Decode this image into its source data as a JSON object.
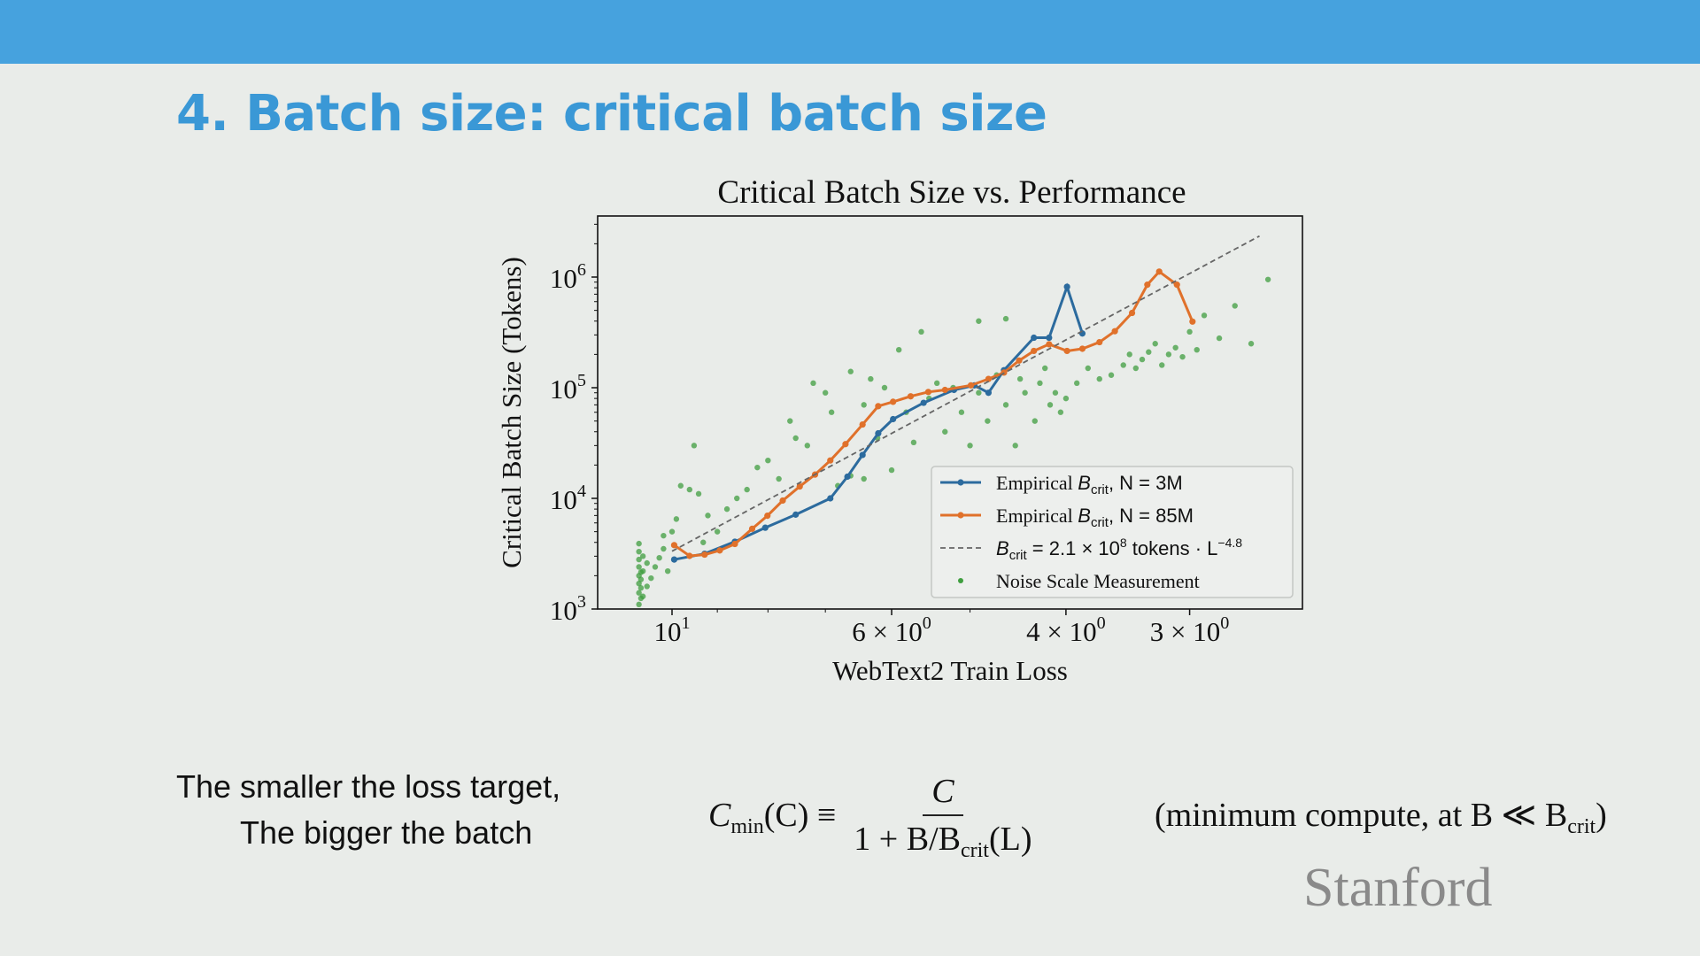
{
  "slide": {
    "title": "4. Batch size: critical batch size",
    "caption_line1": "The smaller the loss target,",
    "caption_line2": "The bigger the batch",
    "formula": {
      "lhs_var": "C",
      "lhs_sub": "min",
      "lhs_rest": "(C) ≡",
      "numerator": "C",
      "denominator_main": "1 + B/B",
      "denominator_sub": "crit",
      "denominator_tail": "(L)"
    },
    "note": {
      "main": "(minimum compute, at B ≪ B",
      "sub": "crit",
      "tail": ")"
    },
    "watermark": "Stanford",
    "colors": {
      "topbar": "#46a2de",
      "title": "#3a98d6"
    }
  },
  "chart_data": {
    "type": "line",
    "title": "Critical Batch Size vs. Performance",
    "xlabel": "WebText2 Train Loss",
    "ylabel": "Critical Batch Size (Tokens)",
    "xscale": "log",
    "yscale": "log",
    "x_inverted": true,
    "xlim": [
      11.9,
      2.31
    ],
    "ylim": [
      1000,
      3500000
    ],
    "grid": false,
    "legend_position": "lower-right",
    "x_ticks": [
      {
        "value": 10,
        "base": "10",
        "exp": "1"
      },
      {
        "value": 6,
        "base": "6 × 10",
        "exp": "0"
      },
      {
        "value": 4,
        "base": "4 × 10",
        "exp": "0"
      },
      {
        "value": 3,
        "base": "3 × 10",
        "exp": "0"
      }
    ],
    "x_minor_ticks": [
      9,
      8,
      7,
      5
    ],
    "y_ticks": [
      {
        "value": 1000,
        "base": "10",
        "exp": "3"
      },
      {
        "value": 10000,
        "base": "10",
        "exp": "4"
      },
      {
        "value": 100000,
        "base": "10",
        "exp": "5"
      },
      {
        "value": 1000000,
        "base": "10",
        "exp": "6"
      }
    ],
    "series": [
      {
        "name": "Empirical B_crit, N = 3M",
        "legend": {
          "pre": "Empirical ",
          "sym": "B",
          "sub": "crit",
          "post": ", N = 3M"
        },
        "color": "#2c6b9e",
        "style": "line-marker",
        "points": [
          [
            9.95,
            2800
          ],
          [
            9.27,
            3160
          ],
          [
            8.64,
            4060
          ],
          [
            8.05,
            5430
          ],
          [
            7.5,
            7130
          ],
          [
            6.92,
            10000
          ],
          [
            6.65,
            15700
          ],
          [
            6.42,
            24700
          ],
          [
            6.19,
            38700
          ],
          [
            5.98,
            52000
          ],
          [
            5.57,
            73000
          ],
          [
            5.19,
            95500
          ],
          [
            4.95,
            105000
          ],
          [
            4.79,
            90000
          ],
          [
            4.62,
            144000
          ],
          [
            4.31,
            283000
          ],
          [
            4.16,
            283000
          ],
          [
            3.99,
            817000
          ],
          [
            3.85,
            309000
          ]
        ]
      },
      {
        "name": "Empirical B_crit, N = 85M",
        "legend": {
          "pre": "Empirical ",
          "sym": "B",
          "sub": "crit",
          "post": ", N = 85M"
        },
        "color": "#e0712b",
        "style": "line-marker",
        "points": [
          [
            9.95,
            3780
          ],
          [
            9.6,
            3020
          ],
          [
            9.27,
            3100
          ],
          [
            8.95,
            3380
          ],
          [
            8.64,
            3870
          ],
          [
            8.3,
            5310
          ],
          [
            8.01,
            6970
          ],
          [
            7.73,
            9550
          ],
          [
            7.43,
            12800
          ],
          [
            7.17,
            16400
          ],
          [
            6.92,
            22000
          ],
          [
            6.68,
            30900
          ],
          [
            6.42,
            46500
          ],
          [
            6.19,
            68100
          ],
          [
            5.98,
            74600
          ],
          [
            5.74,
            83600
          ],
          [
            5.51,
            91500
          ],
          [
            5.3,
            95500
          ],
          [
            4.99,
            105000
          ],
          [
            4.79,
            120000
          ],
          [
            4.62,
            137000
          ],
          [
            4.46,
            176000
          ],
          [
            4.31,
            215000
          ],
          [
            4.16,
            247000
          ],
          [
            3.99,
            215000
          ],
          [
            3.85,
            225000
          ],
          [
            3.7,
            258000
          ],
          [
            3.57,
            324000
          ],
          [
            3.43,
            474000
          ],
          [
            3.31,
            853000
          ],
          [
            3.22,
            1120000
          ],
          [
            3.09,
            853000
          ],
          [
            2.98,
            396000
          ]
        ]
      },
      {
        "name": "B_crit = 2.1 × 10^8 tokens · L^-4.8",
        "legend": {
          "pre": "",
          "sym": "B",
          "sub": "crit",
          "post": " = 2.1 × 10",
          "sup": "8",
          "post2": " tokens · L",
          "sup2": "−4.8"
        },
        "color": "#666666",
        "style": "dashed",
        "coefficient": 210000000,
        "exponent": -4.8,
        "x_range": [
          10,
          2.55
        ]
      },
      {
        "name": "Noise Scale Measurement",
        "legend": {
          "pre": "Noise Scale Measurement"
        },
        "color": "#3f9e3f",
        "style": "scatter",
        "points": [
          [
            10.8,
            1100
          ],
          [
            10.8,
            1400
          ],
          [
            10.8,
            1700
          ],
          [
            10.8,
            2000
          ],
          [
            10.8,
            2400
          ],
          [
            10.8,
            2800
          ],
          [
            10.8,
            3300
          ],
          [
            10.8,
            3900
          ],
          [
            10.75,
            1250
          ],
          [
            10.75,
            1550
          ],
          [
            10.75,
            1850
          ],
          [
            10.75,
            2150
          ],
          [
            10.7,
            1300
          ],
          [
            10.7,
            2200
          ],
          [
            10.7,
            3000
          ],
          [
            10.6,
            1600
          ],
          [
            10.6,
            2600
          ],
          [
            10.5,
            1900
          ],
          [
            10.4,
            2400
          ],
          [
            10.3,
            2900
          ],
          [
            10.2,
            3500
          ],
          [
            10.1,
            2200
          ],
          [
            10.0,
            5000
          ],
          [
            10.2,
            4600
          ],
          [
            9.9,
            6500
          ],
          [
            9.8,
            13000
          ],
          [
            9.6,
            12000
          ],
          [
            9.4,
            11000
          ],
          [
            9.3,
            4000
          ],
          [
            9.2,
            7000
          ],
          [
            9.0,
            5000
          ],
          [
            9.5,
            30000
          ],
          [
            8.8,
            8000
          ],
          [
            8.6,
            10000
          ],
          [
            8.4,
            12000
          ],
          [
            8.2,
            19000
          ],
          [
            8.0,
            22000
          ],
          [
            7.8,
            15000
          ],
          [
            7.6,
            50000
          ],
          [
            7.5,
            35000
          ],
          [
            7.3,
            30000
          ],
          [
            7.2,
            110000
          ],
          [
            7.0,
            90000
          ],
          [
            6.9,
            60000
          ],
          [
            6.8,
            13000
          ],
          [
            6.6,
            140000
          ],
          [
            6.6,
            16000
          ],
          [
            6.4,
            70000
          ],
          [
            6.3,
            120000
          ],
          [
            6.4,
            15000
          ],
          [
            6.2,
            35000
          ],
          [
            6.1,
            100000
          ],
          [
            6.0,
            18000
          ],
          [
            5.9,
            220000
          ],
          [
            5.8,
            60000
          ],
          [
            5.7,
            32000
          ],
          [
            5.6,
            320000
          ],
          [
            5.5,
            80000
          ],
          [
            5.4,
            110000
          ],
          [
            5.3,
            40000
          ],
          [
            5.2,
            100000
          ],
          [
            5.1,
            60000
          ],
          [
            5.0,
            30000
          ],
          [
            4.9,
            400000
          ],
          [
            4.9,
            90000
          ],
          [
            4.8,
            50000
          ],
          [
            4.7,
            130000
          ],
          [
            4.6,
            420000
          ],
          [
            4.6,
            70000
          ],
          [
            4.5,
            30000
          ],
          [
            4.45,
            120000
          ],
          [
            4.4,
            90000
          ],
          [
            4.3,
            50000
          ],
          [
            4.25,
            110000
          ],
          [
            4.2,
            150000
          ],
          [
            4.15,
            70000
          ],
          [
            4.1,
            90000
          ],
          [
            4.05,
            60000
          ],
          [
            4.0,
            80000
          ],
          [
            3.9,
            110000
          ],
          [
            3.8,
            150000
          ],
          [
            3.7,
            120000
          ],
          [
            3.6,
            130000
          ],
          [
            3.5,
            160000
          ],
          [
            3.45,
            200000
          ],
          [
            3.4,
            150000
          ],
          [
            3.35,
            180000
          ],
          [
            3.3,
            210000
          ],
          [
            3.25,
            250000
          ],
          [
            3.2,
            160000
          ],
          [
            3.15,
            200000
          ],
          [
            3.1,
            230000
          ],
          [
            3.05,
            190000
          ],
          [
            3.0,
            320000
          ],
          [
            2.95,
            220000
          ],
          [
            2.9,
            450000
          ],
          [
            2.8,
            280000
          ],
          [
            2.7,
            550000
          ],
          [
            2.6,
            250000
          ],
          [
            2.5,
            950000
          ]
        ]
      }
    ]
  }
}
